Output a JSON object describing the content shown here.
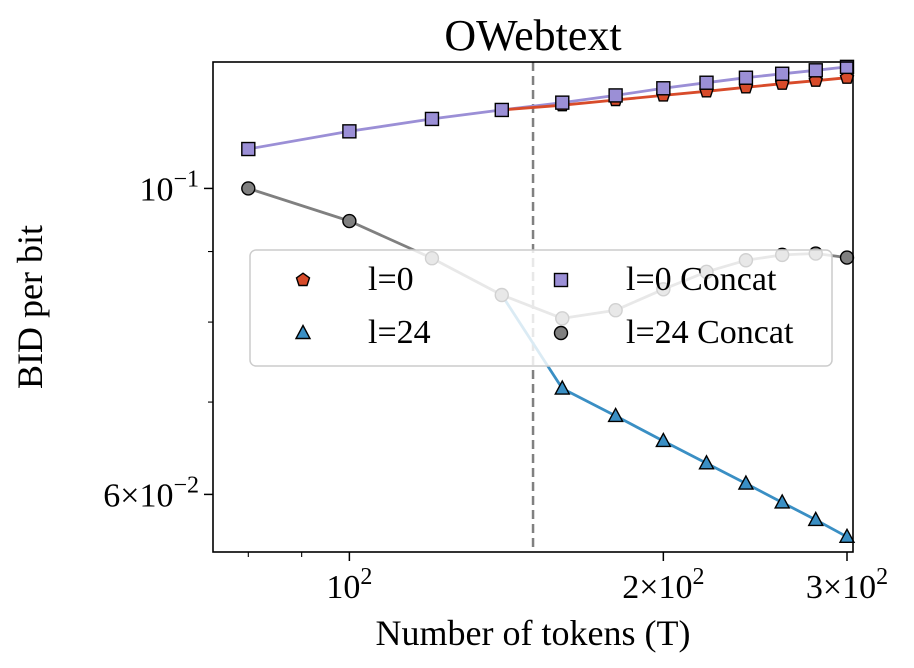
{
  "chart_data": {
    "type": "line",
    "title": "OWebtext",
    "xlabel": "Number of tokens (T)",
    "ylabel": "BID per bit",
    "xscale": "log",
    "yscale": "log",
    "xlim": [
      74,
      304
    ],
    "ylim": [
      0.0545,
      0.1235
    ],
    "x_ticks": [
      {
        "value": 100,
        "base": "10",
        "exp": "2",
        "mult": ""
      },
      {
        "value": 200,
        "base": "10",
        "exp": "2",
        "mult": "2×"
      },
      {
        "value": 300,
        "base": "10",
        "exp": "2",
        "mult": "3×"
      }
    ],
    "y_ticks": [
      {
        "value": 0.1,
        "base": "10",
        "exp": "−1",
        "mult": ""
      },
      {
        "value": 0.06,
        "base": "10",
        "exp": "−2",
        "mult": "6×"
      }
    ],
    "vline_x": 150,
    "legend_position": "center",
    "x": [
      80,
      100,
      120,
      140,
      160,
      180,
      200,
      220,
      240,
      260,
      280,
      300
    ],
    "series": [
      {
        "name": "l=0",
        "color": "#d84b2a",
        "marker": "pentagon",
        "values": [
          null,
          null,
          null,
          null,
          0.1149,
          0.1159,
          0.1168,
          0.1176,
          0.1184,
          0.1191,
          0.1197,
          0.1203
        ]
      },
      {
        "name": "l=24",
        "color": "#3a8fc4",
        "marker": "triangle",
        "values": [
          null,
          null,
          null,
          null,
          0.0716,
          0.0684,
          0.0656,
          0.0632,
          0.0611,
          0.0592,
          0.0575,
          0.0559
        ]
      },
      {
        "name": "l=0 Concat",
        "color": "#9b8fd6",
        "marker": "square",
        "values": [
          0.1068,
          0.11,
          0.1123,
          0.114,
          0.1154,
          0.1168,
          0.1182,
          0.1193,
          0.1203,
          0.1211,
          0.1218,
          0.1225
        ]
      },
      {
        "name": "l=24 Concat",
        "color": "#808080",
        "marker": "circle",
        "values": [
          0.1,
          0.0947,
          0.089,
          0.0837,
          0.0805,
          0.0816,
          0.0845,
          0.087,
          0.0887,
          0.0895,
          0.0897,
          0.0891
        ]
      }
    ],
    "line_segments": [
      {
        "series": "l=0 Concat",
        "color": "#9b8fd6",
        "from_index": 0,
        "to_index": 11
      },
      {
        "series": "l=0",
        "color": "#d84b2a",
        "from_index": 3,
        "to_index": 11,
        "base_series": "l=0 Concat"
      },
      {
        "series": "l=24 Concat",
        "color": "#808080",
        "from_index": 0,
        "to_index": 11
      },
      {
        "series": "l=24",
        "color": "#3a8fc4",
        "from_index": 3,
        "to_index": 11,
        "base_series": "l=24 Concat"
      }
    ]
  }
}
